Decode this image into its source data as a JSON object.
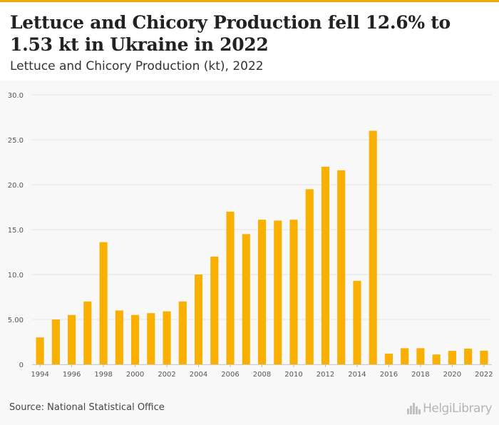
{
  "title": "Lettuce and Chicory Production fell 12.6% to 1.53 kt in Ukraine in 2022",
  "subtitle": "Lettuce and Chicory Production (kt), 2022",
  "source": "Source: National Statistical Office",
  "logo_text": "HelgiLibrary",
  "colors": {
    "bar": "#f9b000",
    "accent": "#f2a900",
    "grid": "#e4e4e4",
    "axis_text": "#555555"
  },
  "chart_data": {
    "type": "bar",
    "title": "Lettuce and Chicory Production (kt), 2022",
    "xlabel": "",
    "ylabel": "",
    "ylim": [
      0,
      30
    ],
    "yticks": [
      0,
      5,
      10,
      15,
      20,
      25,
      30
    ],
    "ytick_labels": [
      "0",
      "5.00",
      "10.0",
      "15.0",
      "20.0",
      "25.0",
      "30.0"
    ],
    "categories": [
      "1994",
      "1995",
      "1996",
      "1997",
      "1998",
      "1999",
      "2000",
      "2001",
      "2002",
      "2003",
      "2004",
      "2005",
      "2006",
      "2007",
      "2008",
      "2009",
      "2010",
      "2011",
      "2012",
      "2013",
      "2014",
      "2015",
      "2016",
      "2017",
      "2018",
      "2019",
      "2020",
      "2021",
      "2022"
    ],
    "xtick_labels": [
      "1994",
      "",
      "1996",
      "",
      "1998",
      "",
      "2000",
      "",
      "2002",
      "",
      "2004",
      "",
      "2006",
      "",
      "2008",
      "",
      "2010",
      "",
      "2012",
      "",
      "2014",
      "",
      "2016",
      "",
      "2018",
      "",
      "2020",
      "",
      "2022"
    ],
    "values": [
      3.0,
      5.0,
      5.5,
      7.0,
      13.6,
      6.0,
      5.5,
      5.7,
      5.9,
      7.0,
      10.0,
      12.0,
      17.0,
      14.5,
      16.1,
      16.0,
      16.1,
      19.5,
      22.0,
      21.6,
      9.3,
      26.0,
      1.2,
      1.8,
      1.8,
      1.1,
      1.5,
      1.75,
      1.53
    ],
    "grid": true,
    "legend": "none"
  }
}
